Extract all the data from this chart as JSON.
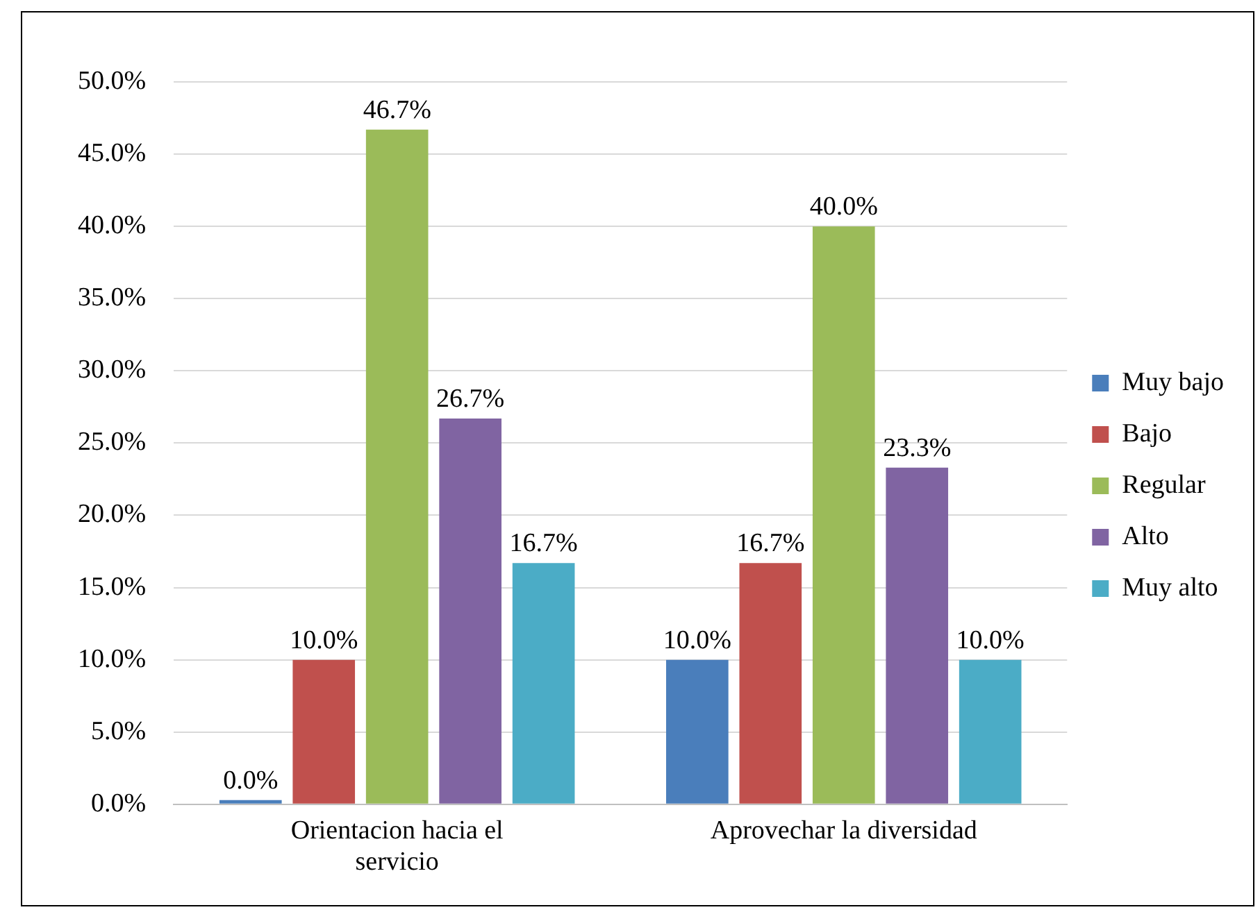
{
  "chart_data": {
    "type": "bar",
    "categories": [
      "Orientacion hacia el servicio",
      "Aprovechar la diversidad"
    ],
    "series": [
      {
        "name": "Muy bajo",
        "color": "#4a7ebb",
        "values": [
          0,
          10
        ],
        "value_labels": [
          "0.0%",
          "10.0%"
        ]
      },
      {
        "name": "Bajo",
        "color": "#c0504d",
        "values": [
          10,
          16.7
        ],
        "value_labels": [
          "10.0%",
          "16.7%"
        ]
      },
      {
        "name": "Regular",
        "color": "#9bbb59",
        "values": [
          46.7,
          40
        ],
        "value_labels": [
          "46.7%",
          "40.0%"
        ]
      },
      {
        "name": "Alto",
        "color": "#8064a2",
        "values": [
          26.7,
          23.3
        ],
        "value_labels": [
          "26.7%",
          "23.3%"
        ]
      },
      {
        "name": "Muy alto",
        "color": "#4bacc6",
        "values": [
          16.7,
          10
        ],
        "value_labels": [
          "16.7%",
          "10.0%"
        ]
      }
    ],
    "ylim": [
      0,
      50
    ],
    "yticks": [
      {
        "value": 0,
        "label": "0.0%"
      },
      {
        "value": 5,
        "label": "5.0%"
      },
      {
        "value": 10,
        "label": "10.0%"
      },
      {
        "value": 15,
        "label": "15.0%"
      },
      {
        "value": 20,
        "label": "20.0%"
      },
      {
        "value": 25,
        "label": "25.0%"
      },
      {
        "value": 30,
        "label": "30.0%"
      },
      {
        "value": 35,
        "label": "35.0%"
      },
      {
        "value": 40,
        "label": "40.0%"
      },
      {
        "value": 45,
        "label": "45.0%"
      },
      {
        "value": 50,
        "label": "50.0%"
      }
    ],
    "grid": "y",
    "legend": "right"
  }
}
